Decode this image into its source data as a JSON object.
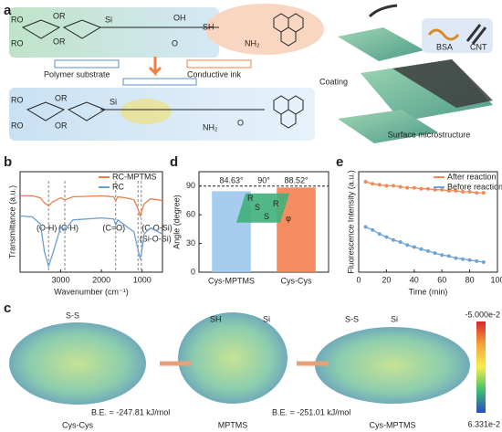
{
  "figure": {
    "panel_labels": [
      "a",
      "b",
      "c",
      "d",
      "e"
    ],
    "a": {
      "polymer_substrate": "Polymer substrate",
      "conductive_ink": "Conductive ink",
      "coating": "Coating",
      "surface_microstructure": "Surface microstructure",
      "bsa": "BSA",
      "cnt": "CNT",
      "chem": [
        "RO",
        "OR",
        "RO",
        "OR",
        "Si",
        "SH",
        "NH₂",
        "O",
        "OH",
        "RO",
        "OR",
        "RO",
        "OR",
        "Si",
        "NH₂",
        "O"
      ]
    },
    "c": {
      "labels": [
        "S-S",
        "SH",
        "Si",
        "S-S",
        "Si"
      ],
      "energies": [
        "B.E. = -247.81 kJ/mol",
        "B.E. = -251.01 kJ/mol"
      ],
      "names": [
        "Cys-Cys",
        "MPTMS",
        "Cys-MPTMS"
      ],
      "colorbar": [
        "-5.000e-2",
        "6.331e-2"
      ]
    },
    "d_inset": [
      "R",
      "S",
      "S",
      "R",
      "φ"
    ]
  },
  "chart_data": [
    {
      "type": "line",
      "x_label": "Wavenumber (cm⁻¹)",
      "y_label": "Transmittance (a.u.)",
      "xlim": [
        4000,
        500
      ],
      "ylim": [
        0,
        100
      ],
      "xticks": [
        3000,
        2000,
        1000
      ],
      "x": [
        4000,
        3700,
        3500,
        3400,
        3300,
        3200,
        3000,
        2900,
        2700,
        2000,
        1700,
        1650,
        1600,
        1400,
        1200,
        1100,
        1050,
        1020,
        950,
        800,
        600,
        500
      ],
      "series": [
        {
          "name": "RC-MPTMS",
          "color": "#e8804a",
          "values": [
            76,
            76,
            74,
            69,
            66,
            70,
            74,
            72,
            75,
            76,
            75,
            71,
            75,
            74,
            72,
            63,
            56,
            60,
            68,
            73,
            72,
            71
          ]
        },
        {
          "name": "RC",
          "color": "#6c9fcf",
          "values": [
            56,
            55,
            48,
            20,
            6,
            18,
            45,
            42,
            52,
            54,
            53,
            47,
            52,
            46,
            40,
            22,
            14,
            18,
            38,
            44,
            40,
            38
          ]
        }
      ],
      "annotations": [
        {
          "text": "(O-H)",
          "x": 3300
        },
        {
          "text": "(C-H)",
          "x": 2900
        },
        {
          "text": "(C=O)",
          "x": 1650
        },
        {
          "text": "(C-O-Si)",
          "x": 1100
        },
        {
          "text": "(Si-O-Si)",
          "x": 1020
        }
      ]
    },
    {
      "type": "bar",
      "y_label": "Angle (degree)",
      "ylim": [
        0,
        105
      ],
      "yticks": [
        0,
        30,
        60,
        90
      ],
      "categories": [
        "Cys-MPTMS",
        "Cys-Cys"
      ],
      "values": [
        84.63,
        88.52
      ],
      "value_labels": [
        "84.63°",
        "88.52°"
      ],
      "colors": [
        "#9cc6ec",
        "#f6804f"
      ],
      "reference": {
        "value": 90,
        "label": "90°"
      }
    },
    {
      "type": "line",
      "markers": true,
      "x_label": "Time (min)",
      "y_label": "Fluorescence Intensity (a.u.)",
      "xlim": [
        0,
        100
      ],
      "ylim": [
        0,
        1
      ],
      "xticks": [
        0,
        20,
        40,
        60,
        80,
        100
      ],
      "x": [
        5,
        10,
        15,
        20,
        25,
        30,
        35,
        40,
        45,
        50,
        55,
        60,
        65,
        70,
        75,
        80,
        85,
        90
      ],
      "series": [
        {
          "name": "After reaction",
          "color": "#f08a55",
          "values": [
            0.9,
            0.88,
            0.87,
            0.86,
            0.86,
            0.85,
            0.84,
            0.84,
            0.83,
            0.83,
            0.82,
            0.82,
            0.81,
            0.81,
            0.8,
            0.8,
            0.79,
            0.79
          ]
        },
        {
          "name": "Before reaction",
          "color": "#6fa3d8",
          "values": [
            0.45,
            0.42,
            0.38,
            0.35,
            0.32,
            0.3,
            0.27,
            0.25,
            0.23,
            0.21,
            0.19,
            0.17,
            0.16,
            0.14,
            0.13,
            0.12,
            0.11,
            0.1
          ]
        }
      ]
    }
  ]
}
